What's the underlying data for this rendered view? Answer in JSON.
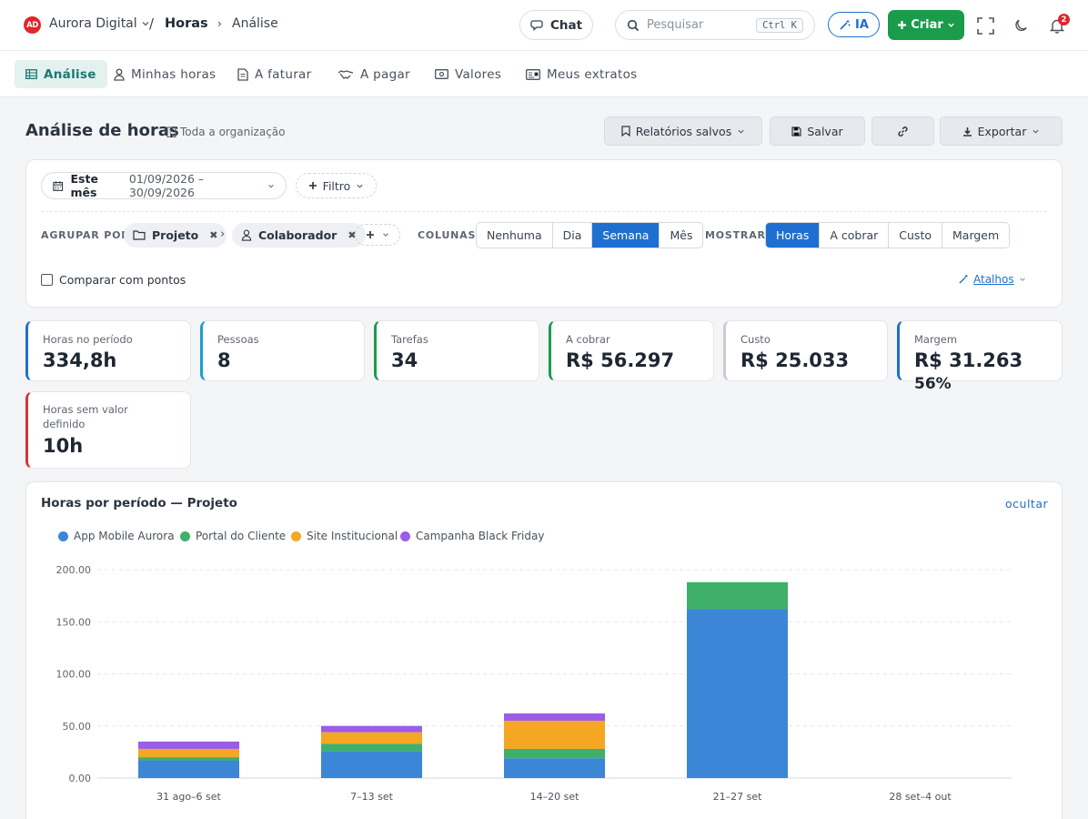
{
  "header": {
    "logo": "AD",
    "org": "Aurora Digital",
    "sep": "/",
    "crumb_main": "Horas",
    "crumb_sep": "›",
    "crumb_sub": "Análise",
    "chat": "Chat",
    "search_placeholder": "Pesquisar",
    "search_kbd": "Ctrl K",
    "ia": "IA",
    "criar": "Criar",
    "notif_count": "2"
  },
  "tabs": [
    {
      "label": "Análise",
      "icon": "grid-icon"
    },
    {
      "label": "Minhas horas",
      "icon": "user-icon"
    },
    {
      "label": "A faturar",
      "icon": "document-icon"
    },
    {
      "label": "A pagar",
      "icon": "handshake-icon"
    },
    {
      "label": "Valores",
      "icon": "money-icon"
    },
    {
      "label": "Meus extratos",
      "icon": "card-icon"
    }
  ],
  "page": {
    "title": "Análise de horas",
    "scope": "Toda a organização",
    "saved_reports": "Relatórios salvos",
    "save": "Salvar",
    "export": "Exportar"
  },
  "filters": {
    "period_label": "Este mês",
    "period_range": "01/09/2026 – 30/09/2026",
    "filter": "Filtro",
    "group_by_label": "AGRUPAR POR",
    "groups": [
      "Projeto",
      "Colaborador"
    ],
    "columns_label": "COLUNAS",
    "columns": [
      "Nenhuma",
      "Dia",
      "Semana",
      "Mês"
    ],
    "columns_active": "Semana",
    "show_label": "MOSTRAR",
    "show": [
      "Horas",
      "A cobrar",
      "Custo",
      "Margem"
    ],
    "show_active": "Horas",
    "compare": "Comparar com pontos",
    "shortcuts": "Atalhos"
  },
  "kpis": [
    {
      "label": "Horas no período",
      "value": "334,8h",
      "accent": "#1e6fd0"
    },
    {
      "label": "Pessoas",
      "value": "8",
      "accent": "#1a9fd0"
    },
    {
      "label": "Tarefas",
      "value": "34",
      "accent": "#1a9c4c"
    },
    {
      "label": "A cobrar",
      "value": "R$ 56.297",
      "accent": "#1a9c4c"
    },
    {
      "label": "Custo",
      "value": "R$ 25.033",
      "accent": "#c9ccd2"
    },
    {
      "label": "Margem",
      "value": "R$ 31.263",
      "extra": "56%",
      "accent": "#1e6fd0"
    },
    {
      "label": "Horas sem valor definido",
      "value": "10h",
      "accent": "#d0363a"
    }
  ],
  "chart_panel": {
    "title": "Horas por período — Projeto",
    "hide": "ocultar"
  },
  "chart_data": {
    "type": "bar",
    "stacked": true,
    "grid": true,
    "legend": "top-left",
    "categories": [
      "31 ago–6 set",
      "7–13 set",
      "14–20 set",
      "21–27 set",
      "28 set–4 out"
    ],
    "y_ticks": [
      "200.00",
      "150.00",
      "100.00",
      "50.00",
      "0.00"
    ],
    "ylim": [
      0,
      200
    ],
    "series": [
      {
        "name": "App Mobile Aurora",
        "color": "#3b86d6",
        "values": [
          17,
          26,
          19,
          162,
          0
        ]
      },
      {
        "name": "Portal do Cliente",
        "color": "#3eb06a",
        "values": [
          3,
          7,
          9,
          26,
          0
        ]
      },
      {
        "name": "Site Institucional",
        "color": "#f5a623",
        "values": [
          8,
          11,
          27,
          0,
          0
        ]
      },
      {
        "name": "Campanha Black Friday",
        "color": "#9b5de5",
        "values": [
          7,
          6,
          7,
          0,
          0
        ]
      }
    ]
  }
}
